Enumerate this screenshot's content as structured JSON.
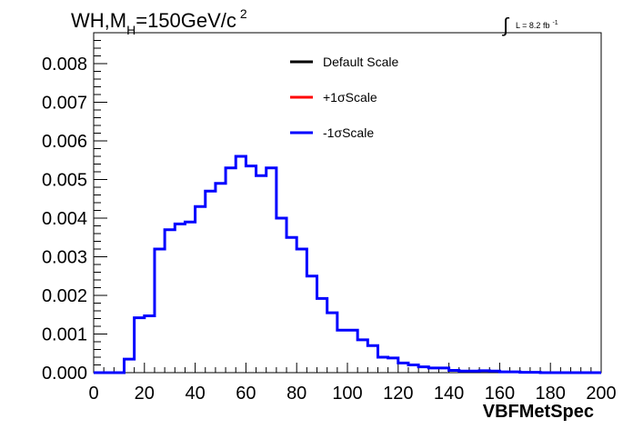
{
  "chart_data": {
    "type": "line",
    "title_main": "WH,M",
    "title_sub": "H",
    "title_rest": "=150GeV/c",
    "title_sup": "2",
    "lumi_symbol": "∫",
    "lumi_text": "L = 8.2 fb",
    "lumi_sup": "-1",
    "xlabel": "VBFMetSpec",
    "xlim": [
      0,
      200
    ],
    "ylim": [
      0,
      0.0088
    ],
    "x_ticks": [
      0,
      20,
      40,
      60,
      80,
      100,
      120,
      140,
      160,
      180,
      200
    ],
    "x_tick_labels": [
      "0",
      "20",
      "40",
      "60",
      "80",
      "100",
      "120",
      "140",
      "160",
      "180",
      "200"
    ],
    "y_ticks": [
      0,
      0.001,
      0.002,
      0.003,
      0.004,
      0.005,
      0.006,
      0.007,
      0.008
    ],
    "y_tick_labels": [
      "0.000",
      "0.001",
      "0.002",
      "0.003",
      "0.004",
      "0.005",
      "0.006",
      "0.007",
      "0.008"
    ],
    "bin_width": 4,
    "bin_edges_start": 0,
    "legend": [
      {
        "name": "Default Scale",
        "color": "#000000"
      },
      {
        "name": "+1σScale",
        "color": "#ff0000"
      },
      {
        "name": "-1σScale",
        "color": "#0000ff"
      }
    ],
    "series": [
      {
        "name": "-1σScale",
        "color": "#0000ff",
        "values": [
          0.0,
          0.0,
          0.0,
          0.00035,
          0.00142,
          0.00147,
          0.0032,
          0.0037,
          0.00385,
          0.0039,
          0.0043,
          0.0047,
          0.0049,
          0.0053,
          0.0056,
          0.00535,
          0.0051,
          0.0053,
          0.004,
          0.0035,
          0.0032,
          0.0025,
          0.00192,
          0.00155,
          0.0011,
          0.0011,
          0.00085,
          0.0007,
          0.0004,
          0.00038,
          0.00025,
          0.0002,
          0.00015,
          0.00012,
          0.00012,
          6e-05,
          4e-05,
          4e-05,
          5e-05,
          4e-05,
          2e-05,
          2e-05,
          1e-05,
          1e-05,
          0.0,
          0.0,
          0.0,
          0.0,
          0.0,
          0.0
        ]
      }
    ]
  }
}
